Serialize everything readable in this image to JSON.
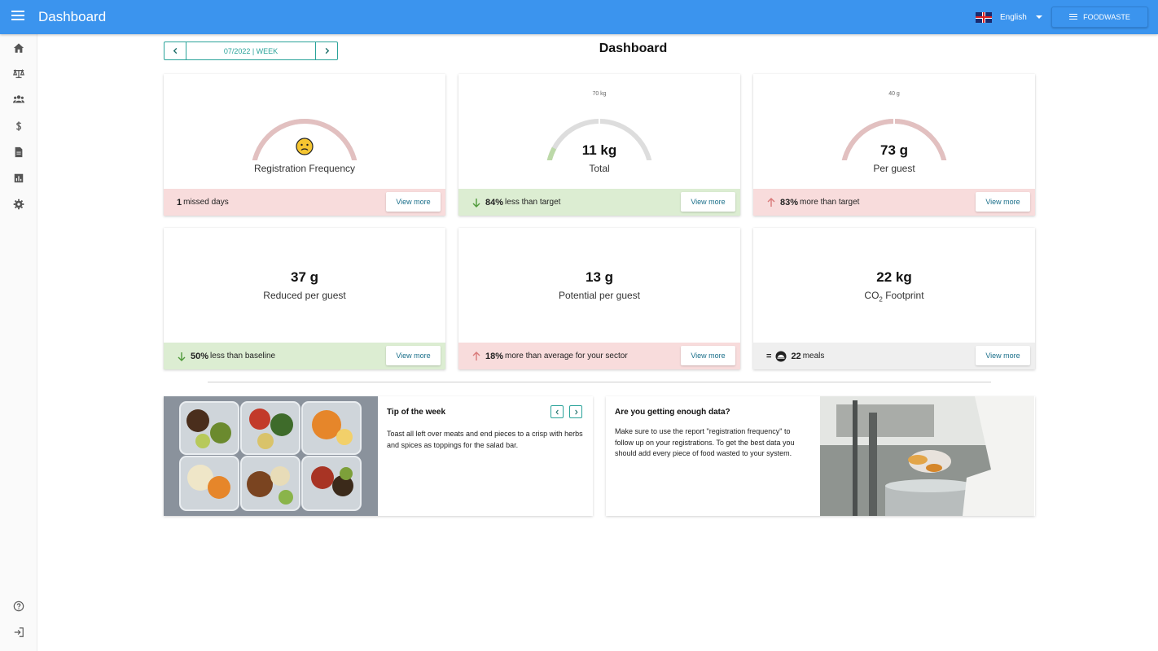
{
  "header": {
    "title": "Dashboard",
    "language": "English",
    "account_button": "FOODWASTE"
  },
  "sidebar": {
    "items": [
      {
        "icon": "home-icon"
      },
      {
        "icon": "scale-icon"
      },
      {
        "icon": "users-icon"
      },
      {
        "icon": "dollar-icon"
      },
      {
        "icon": "report-icon"
      },
      {
        "icon": "bar-chart-icon"
      },
      {
        "icon": "settings-icon"
      },
      {
        "icon": "help-icon"
      },
      {
        "icon": "logout-icon"
      }
    ]
  },
  "period": {
    "label": "07/2022 | WEEK"
  },
  "page_title": "Dashboard",
  "cards": {
    "registration": {
      "label": "Registration Frequency",
      "footer_value": "1",
      "footer_text": "missed days",
      "gauge_fraction": 1.0,
      "status": "red"
    },
    "total": {
      "gauge_max": "70 kg",
      "value": "11 kg",
      "label": "Total",
      "footer_value": "84%",
      "footer_text": "less than target",
      "gauge_fraction": 0.157,
      "status": "green"
    },
    "per_guest": {
      "gauge_max": "40 g",
      "value": "73 g",
      "label": "Per guest",
      "footer_value": "83%",
      "footer_text": "more than target",
      "gauge_fraction": 1.0,
      "status": "red"
    },
    "reduced": {
      "value": "37 g",
      "label": "Reduced per guest",
      "footer_value": "50%",
      "footer_text": "less than baseline",
      "status": "green"
    },
    "potential": {
      "value": "13 g",
      "label": "Potential per guest",
      "footer_value": "18%",
      "footer_text": "more than average for your sector",
      "status": "red"
    },
    "co2": {
      "value": "22 kg",
      "label_main": "CO",
      "label_sub": "2",
      "label_rest": " Footprint",
      "footer_prefix": "=",
      "footer_value": "22",
      "footer_text": "meals",
      "status": "grey"
    },
    "view_more": "View more"
  },
  "tip": {
    "title": "Tip of the week",
    "text": "Toast all left over meats and end pieces to a crisp with herbs and spices as toppings for the salad bar."
  },
  "data_tip": {
    "title": "Are you getting enough data?",
    "text": "Make sure to use the report \"registration frequency\" to follow up on your registrations. To get the best data you should add every piece of food wasted to your system."
  },
  "colors": {
    "header": "#3b94ee",
    "accent": "#2aa39a",
    "red_bg": "#f8dcdc",
    "green_bg": "#dcedd2",
    "grey_bg": "#efefef",
    "gauge_red": "#e2c0c0",
    "gauge_green": "#bcd9a8",
    "gauge_track": "#dddddd"
  }
}
